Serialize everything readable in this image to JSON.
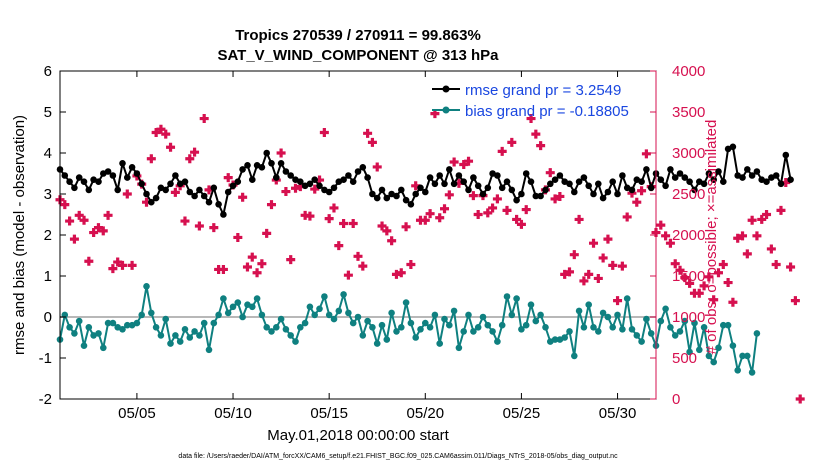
{
  "chart_data": {
    "type": "line",
    "title_line1": "Tropics 270539 / 270911 = 99.863%",
    "title_line2": "SAT_V_WIND_COMPONENT @ 313 hPa",
    "xlabel": "May.01,2018 00:00:00 start",
    "ylabel_left": "rmse and bias (model - observation)",
    "ylabel_right": "# of obs: o=possible; ×=assimilated",
    "footer": "data file: /Users/raeder/DAI/ATM_forcXX/CAM6_setup/f.e21.FHIST_BGC.f09_025.CAM6assim.011/Diags_NTrS_2018-05/obs_diag_output.nc",
    "xlim": [
      1,
      32
    ],
    "ylim_left": [
      -2,
      6
    ],
    "ylim_right": [
      0,
      4000
    ],
    "x_ticks": [
      5,
      10,
      15,
      20,
      25,
      30
    ],
    "x_tick_labels": [
      "05/05",
      "05/10",
      "05/15",
      "05/20",
      "05/25",
      "05/30"
    ],
    "y_ticks_left": [
      -2,
      -1,
      0,
      1,
      2,
      3,
      4,
      5,
      6
    ],
    "y_ticks_right": [
      0,
      500,
      1000,
      1500,
      2000,
      2500,
      3000,
      3500,
      4000
    ],
    "zero_line": 0,
    "colors": {
      "rmse": "#000000",
      "bias": "#0f8080",
      "obs": "#d6104f",
      "right_axis": "#d6104f",
      "legend_text": "#1a47e0",
      "zero_line": "#b8b8b8"
    },
    "x_start": 1.0,
    "x_step": 0.25,
    "series": [
      {
        "name": "rmse grand pr = 3.2549",
        "axis": "left",
        "values": [
          3.6,
          3.45,
          3.3,
          3.15,
          3.4,
          3.3,
          3.1,
          3.35,
          3.3,
          3.5,
          3.55,
          3.45,
          3.1,
          3.75,
          3.4,
          3.65,
          3.5,
          3.25,
          3.0,
          2.8,
          2.9,
          3.15,
          3.1,
          3.25,
          3.45,
          3.25,
          3.3,
          3.05,
          2.95,
          3.1,
          2.95,
          2.8,
          3.15,
          2.75,
          2.5,
          3.05,
          3.2,
          3.3,
          3.6,
          3.7,
          3.35,
          3.7,
          3.65,
          4.0,
          3.75,
          3.4,
          3.75,
          3.55,
          3.45,
          3.35,
          3.3,
          3.2,
          3.25,
          3.35,
          3.2,
          3.1,
          3.05,
          3.15,
          3.3,
          3.35,
          3.45,
          3.3,
          3.55,
          3.65,
          3.4,
          3.0,
          2.9,
          3.1,
          2.9,
          3.0,
          2.95,
          3.1,
          2.85,
          2.75,
          3.0,
          3.15,
          3.05,
          3.4,
          3.25,
          3.45,
          3.25,
          3.6,
          3.25,
          3.45,
          3.3,
          3.1,
          3.4,
          3.2,
          3.0,
          3.15,
          3.5,
          3.45,
          3.15,
          3.3,
          3.1,
          2.85,
          3.0,
          3.5,
          3.3,
          2.95,
          2.95,
          3.1,
          3.25,
          3.35,
          3.45,
          3.3,
          3.25,
          3.05,
          3.3,
          3.4,
          3.2,
          3.0,
          3.25,
          2.9,
          3.05,
          3.3,
          3.0,
          3.45,
          3.15,
          3.1,
          3.35,
          3.3,
          3.6,
          3.15,
          3.5,
          3.35,
          3.2,
          3.6,
          3.4,
          3.5,
          3.4,
          3.3,
          3.1,
          3.3,
          3.25,
          3.5,
          3.35,
          3.55,
          3.3,
          4.1,
          4.15,
          3.45,
          3.4,
          3.6,
          3.45,
          3.55,
          3.35,
          3.3,
          3.4,
          3.45,
          3.25,
          3.95,
          3.35
        ]
      },
      {
        "name": "bias grand pr = -0.18805",
        "axis": "left",
        "values": [
          -0.55,
          0.05,
          -0.25,
          -0.4,
          -0.1,
          -0.7,
          -0.25,
          -0.45,
          -0.4,
          -0.75,
          -0.15,
          -0.15,
          -0.25,
          -0.3,
          -0.2,
          -0.2,
          -0.15,
          0.05,
          0.75,
          0.1,
          -0.25,
          -0.45,
          -0.05,
          -0.65,
          -0.45,
          -0.6,
          -0.3,
          -0.5,
          -0.35,
          -0.45,
          -0.15,
          -0.8,
          -0.15,
          0.05,
          0.45,
          0.1,
          0.25,
          0.35,
          0.0,
          0.3,
          0.25,
          0.45,
          0.05,
          -0.25,
          -0.35,
          -0.25,
          -0.05,
          -0.3,
          -0.45,
          -0.6,
          -0.25,
          -0.15,
          0.25,
          0.05,
          0.2,
          0.5,
          0.05,
          -0.05,
          0.15,
          0.55,
          0.1,
          -0.15,
          0.0,
          -0.45,
          -0.1,
          -0.25,
          -0.65,
          -0.2,
          -0.55,
          0.1,
          -0.35,
          -0.25,
          0.35,
          -0.15,
          -0.5,
          -0.3,
          -0.15,
          -0.25,
          0.05,
          -0.65,
          -0.05,
          -0.2,
          0.15,
          -0.75,
          -0.35,
          0.05,
          -0.35,
          -0.25,
          0.0,
          -0.2,
          -0.35,
          -0.6,
          -0.2,
          0.5,
          0.05,
          0.45,
          -0.3,
          -0.2,
          0.3,
          -0.1,
          0.05,
          -0.25,
          -0.6,
          -0.55,
          -0.55,
          -0.5,
          -0.35,
          -0.95,
          0.15,
          -0.25,
          0.3,
          -0.25,
          -0.35,
          0.1,
          0.0,
          -0.25,
          0.05,
          -0.3,
          0.45,
          -0.3,
          -0.45,
          -0.6,
          -0.05,
          -0.4,
          -0.7,
          -0.1,
          0.2,
          -0.25,
          -0.45,
          -0.35,
          -0.1,
          -0.85,
          -0.15,
          -0.8,
          -0.25,
          -0.95,
          -1.1,
          -0.75,
          -0.2,
          -0.2,
          -0.7,
          -1.3,
          -0.95,
          -0.95,
          -1.35,
          -0.4
        ]
      },
      {
        "name": "assimilated",
        "axis": "right",
        "values": [
          2430,
          2370,
          2170,
          1950,
          2240,
          2180,
          1680,
          2030,
          2090,
          2050,
          2240,
          1590,
          1670,
          1630,
          2500,
          1630,
          2720,
          2620,
          2400,
          2930,
          3250,
          3290,
          3230,
          3070,
          2520,
          2600,
          2170,
          2930,
          3010,
          2110,
          3420,
          2550,
          2090,
          1580,
          1580,
          2700,
          2610,
          1970,
          2460,
          1610,
          1730,
          1540,
          1650,
          2020,
          2370,
          2670,
          3000,
          2530,
          1700,
          2570,
          2590,
          2240,
          2230,
          2560,
          2670,
          3250,
          2200,
          2330,
          1870,
          2140,
          1510,
          2140,
          1740,
          1620,
          3240,
          3130,
          2830,
          2110,
          2050,
          1930,
          1520,
          1540,
          2100,
          1640,
          2600,
          2180,
          2180,
          2260,
          3480,
          2210,
          2320,
          2490,
          2890,
          2630,
          2860,
          2900,
          2480,
          2250,
          2480,
          2270,
          2330,
          2440,
          3020,
          2300,
          3130,
          2190,
          2130,
          2310,
          3420,
          3230,
          3090,
          2550,
          2760,
          2440,
          2470,
          1520,
          1550,
          1760,
          2190,
          1440,
          1520,
          1900,
          1470,
          1720,
          1950,
          1630,
          1200,
          1620,
          2220,
          2510,
          2400,
          2540,
          2990,
          2590,
          2030,
          2120,
          1990,
          1900,
          1650,
          1570,
          1480,
          1410,
          1290,
          1290,
          1380,
          1490,
          1210,
          1540,
          1640,
          1420,
          1180,
          1960,
          1990,
          1770,
          2180,
          1990,
          2190,
          2250,
          1830,
          1640,
          2300,
          2640,
          1610,
          1200,
          0
        ]
      }
    ],
    "obs_series_possible": "hidden behind assimilated markers"
  }
}
